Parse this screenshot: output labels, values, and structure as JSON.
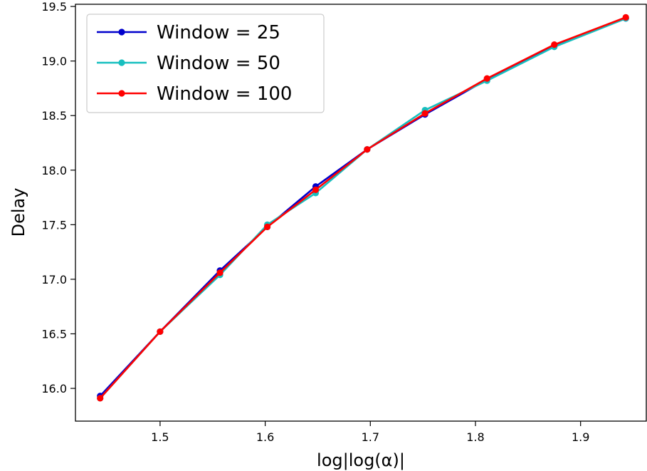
{
  "chart_data": {
    "type": "line",
    "title": "",
    "xlabel": "log|log(α)|",
    "ylabel": "Delay",
    "xlim": [
      1.4195,
      1.9625
    ],
    "ylim": [
      15.7,
      19.52
    ],
    "xticks": [
      1.5,
      1.6,
      1.7,
      1.8,
      1.9
    ],
    "yticks": [
      16.0,
      16.5,
      17.0,
      17.5,
      18.0,
      18.5,
      19.0,
      19.5
    ],
    "grid": false,
    "legend": "top-left",
    "x": [
      1.443,
      1.5,
      1.557,
      1.602,
      1.648,
      1.697,
      1.752,
      1.811,
      1.875,
      1.943
    ],
    "series": [
      {
        "name": "Window = 25",
        "color": "#0000cc",
        "values": [
          15.93,
          16.52,
          17.08,
          17.48,
          17.85,
          18.19,
          18.51,
          18.83,
          19.14,
          19.39
        ]
      },
      {
        "name": "Window = 50",
        "color": "#17bfbf",
        "values": [
          15.91,
          16.52,
          17.04,
          17.5,
          17.79,
          18.19,
          18.55,
          18.82,
          19.13,
          19.39
        ]
      },
      {
        "name": "Window = 100",
        "color": "#ff0000",
        "values": [
          15.91,
          16.52,
          17.06,
          17.48,
          17.82,
          18.19,
          18.52,
          18.84,
          19.15,
          19.4
        ]
      }
    ]
  }
}
